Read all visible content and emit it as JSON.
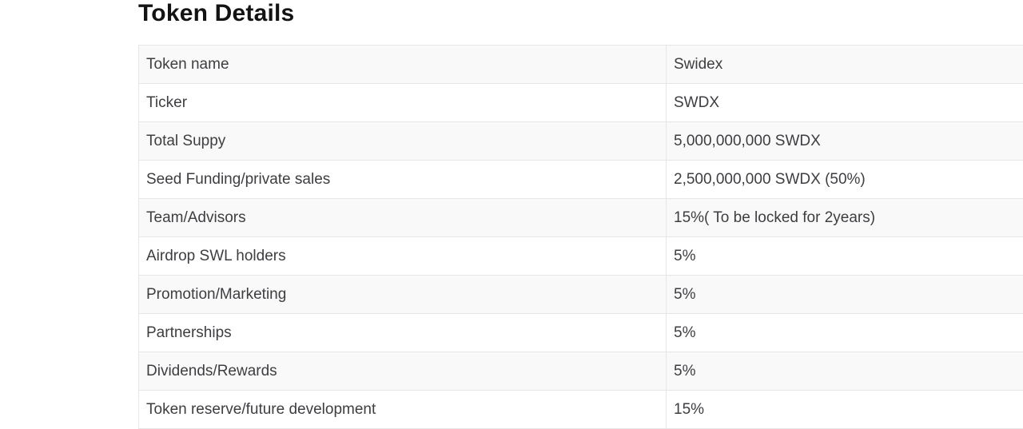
{
  "page": {
    "title": "Token Details"
  },
  "colors": {
    "stripe_background": "#f9f9f9",
    "row_background": "#ffffff",
    "border": "#e6e6e6",
    "text": "#3e3e42",
    "heading_text": "#131313"
  },
  "token_table": {
    "rows": [
      {
        "label": "Token name",
        "value": "Swidex"
      },
      {
        "label": "Ticker",
        "value": "SWDX"
      },
      {
        "label": "Total Suppy",
        "value": "5,000,000,000 SWDX"
      },
      {
        "label": "Seed Funding/private sales",
        "value": "2,500,000,000 SWDX (50%)"
      },
      {
        "label": "Team/Advisors",
        "value": "15%( To be locked for 2years)"
      },
      {
        "label": "Airdrop SWL holders",
        "value": "5%"
      },
      {
        "label": "Promotion/Marketing",
        "value": "5%"
      },
      {
        "label": "Partnerships",
        "value": "5%"
      },
      {
        "label": "Dividends/Rewards",
        "value": "5%"
      },
      {
        "label": "Token reserve/future development",
        "value": "15%"
      }
    ]
  }
}
